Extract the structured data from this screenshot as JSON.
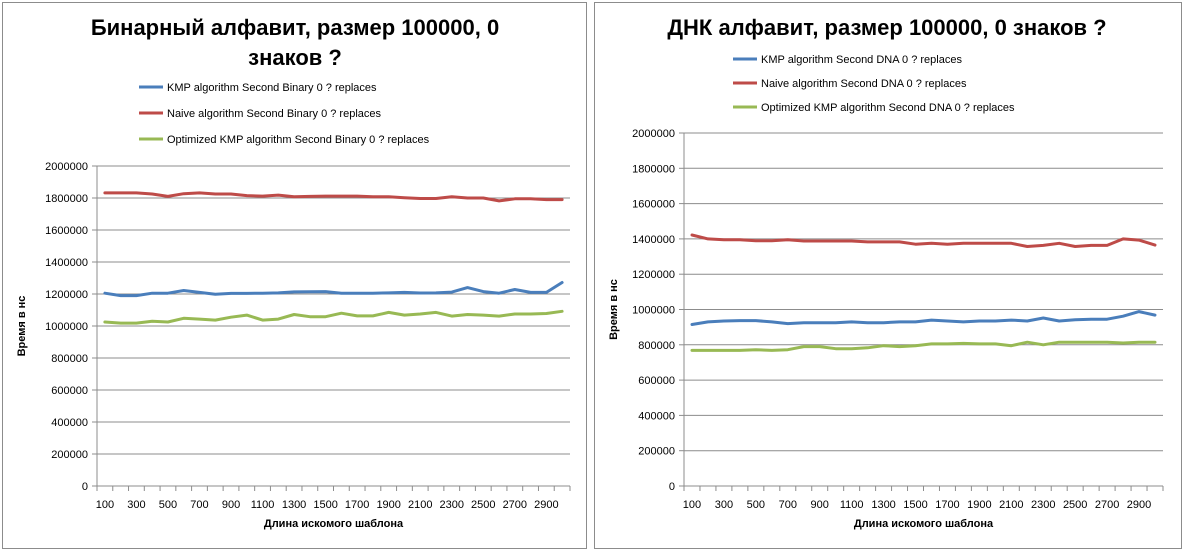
{
  "chart_data": [
    {
      "type": "line",
      "title": "Бинарный алфавит, размер 100000, 0 знаков ?",
      "title_lines": [
        "Бинарный алфавит, размер 100000, 0",
        "знаков ?"
      ],
      "xlabel": "Длина искомого  шаблона",
      "ylabel": "Время  в нс",
      "ylim": [
        0,
        2000000
      ],
      "yticks": [
        "0",
        "200000",
        "400000",
        "600000",
        "800000",
        "1000000",
        "1200000",
        "1400000",
        "1600000",
        "1800000",
        "2000000"
      ],
      "x": [
        100,
        200,
        300,
        400,
        500,
        600,
        700,
        800,
        900,
        1000,
        1100,
        1200,
        1300,
        1400,
        1500,
        1600,
        1700,
        1800,
        1900,
        2000,
        2100,
        2200,
        2300,
        2400,
        2500,
        2600,
        2700,
        2800,
        2900,
        3000
      ],
      "xtick_labels": [
        "100",
        "300",
        "500",
        "700",
        "900",
        "1100",
        "1300",
        "1500",
        "1700",
        "1900",
        "2100",
        "2300",
        "2500",
        "2700",
        "2900"
      ],
      "grid": true,
      "legend_position": "top",
      "series": [
        {
          "name": "KMP algorithm Second Binary 0 ? replaces",
          "color": "#4a7ebb",
          "values": [
            1205000,
            1190000,
            1190000,
            1205000,
            1205000,
            1222000,
            1210000,
            1198000,
            1204000,
            1204000,
            1205000,
            1207000,
            1213000,
            1214000,
            1215000,
            1205000,
            1205000,
            1205000,
            1207000,
            1210000,
            1206000,
            1207000,
            1212000,
            1240000,
            1215000,
            1205000,
            1228000,
            1210000,
            1210000,
            1272000
          ]
        },
        {
          "name": "Naive algorithm Second Binary 0 ? replaces",
          "color": "#be4b48",
          "values": [
            1832000,
            1832000,
            1832000,
            1825000,
            1810000,
            1827000,
            1832000,
            1825000,
            1825000,
            1815000,
            1812000,
            1818000,
            1808000,
            1810000,
            1812000,
            1812000,
            1812000,
            1808000,
            1808000,
            1802000,
            1797000,
            1797000,
            1808000,
            1800000,
            1800000,
            1782000,
            1795000,
            1795000,
            1790000,
            1790000
          ]
        },
        {
          "name": "Optimized KMP algorithm Second Binary 0 ? replaces",
          "color": "#98b954",
          "values": [
            1025000,
            1018000,
            1018000,
            1030000,
            1025000,
            1048000,
            1043000,
            1037000,
            1055000,
            1068000,
            1037000,
            1043000,
            1072000,
            1058000,
            1058000,
            1080000,
            1063000,
            1063000,
            1085000,
            1068000,
            1075000,
            1085000,
            1062000,
            1072000,
            1068000,
            1062000,
            1075000,
            1075000,
            1078000,
            1092000
          ]
        }
      ]
    },
    {
      "type": "line",
      "title": "ДНК алфавит, размер 100000, 0 знаков ?",
      "title_lines": [
        "ДНК алфавит, размер 100000, 0 знаков ?"
      ],
      "xlabel": "Длина искомого  шаблона",
      "ylabel": "Время  в нс",
      "ylim": [
        0,
        2000000
      ],
      "yticks": [
        "0",
        "200000",
        "400000",
        "600000",
        "800000",
        "1000000",
        "1200000",
        "1400000",
        "1600000",
        "1800000",
        "2000000"
      ],
      "x": [
        100,
        200,
        300,
        400,
        500,
        600,
        700,
        800,
        900,
        1000,
        1100,
        1200,
        1300,
        1400,
        1500,
        1600,
        1700,
        1800,
        1900,
        2000,
        2100,
        2200,
        2300,
        2400,
        2500,
        2600,
        2700,
        2800,
        2900,
        3000
      ],
      "xtick_labels": [
        "100",
        "300",
        "500",
        "700",
        "900",
        "1100",
        "1300",
        "1500",
        "1700",
        "1900",
        "2100",
        "2300",
        "2500",
        "2700",
        "2900"
      ],
      "grid": true,
      "legend_position": "top",
      "series": [
        {
          "name": "KMP algorithm Second DNA 0 ? replaces",
          "color": "#4a7ebb",
          "values": [
            915000,
            930000,
            935000,
            937000,
            937000,
            930000,
            920000,
            925000,
            925000,
            925000,
            930000,
            925000,
            925000,
            930000,
            930000,
            940000,
            935000,
            930000,
            935000,
            935000,
            940000,
            935000,
            952000,
            935000,
            942000,
            945000,
            945000,
            962000,
            988000,
            968000
          ]
        },
        {
          "name": "Naive algorithm Second DNA 0 ? replaces",
          "color": "#be4b48",
          "values": [
            1422000,
            1400000,
            1395000,
            1395000,
            1390000,
            1390000,
            1395000,
            1388000,
            1388000,
            1388000,
            1388000,
            1383000,
            1383000,
            1383000,
            1370000,
            1375000,
            1370000,
            1375000,
            1375000,
            1375000,
            1375000,
            1357000,
            1363000,
            1375000,
            1357000,
            1363000,
            1363000,
            1400000,
            1393000,
            1365000
          ]
        },
        {
          "name": "Optimized KMP algorithm Second DNA 0 ? replaces",
          "color": "#98b954",
          "values": [
            768000,
            768000,
            768000,
            768000,
            772000,
            768000,
            772000,
            790000,
            790000,
            778000,
            778000,
            783000,
            795000,
            790000,
            795000,
            805000,
            805000,
            808000,
            805000,
            805000,
            795000,
            815000,
            800000,
            815000,
            815000,
            815000,
            815000,
            810000,
            815000,
            815000
          ]
        }
      ]
    }
  ]
}
